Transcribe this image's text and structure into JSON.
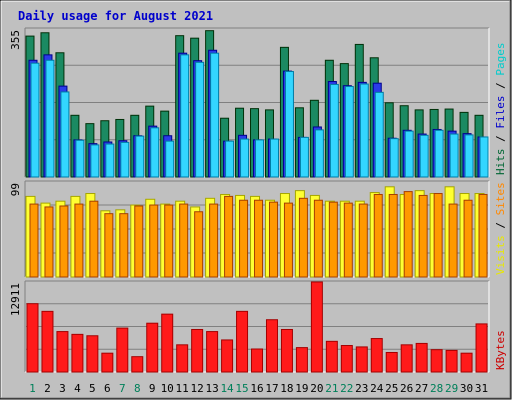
{
  "chart_data": {
    "type": "bar",
    "title": "Daily usage for August 2021",
    "days": [
      "1",
      "2",
      "3",
      "4",
      "5",
      "6",
      "7",
      "8",
      "9",
      "10",
      "11",
      "12",
      "13",
      "14",
      "15",
      "16",
      "17",
      "18",
      "19",
      "20",
      "21",
      "22",
      "23",
      "24",
      "25",
      "26",
      "27",
      "28",
      "29",
      "30",
      "31"
    ],
    "weekend_days": [
      1,
      7,
      8,
      14,
      15,
      21,
      22,
      28,
      29
    ],
    "panels": [
      {
        "id": "top",
        "max_label": "355",
        "ymax": 355,
        "side_labels": [
          {
            "text": "Hits",
            "color": "#006633"
          },
          {
            "text": " / ",
            "color": "#000000"
          },
          {
            "text": "Files",
            "color": "#0000cc"
          },
          {
            "text": " / ",
            "color": "#000000"
          },
          {
            "text": "Pages",
            "color": "#00cccc"
          }
        ],
        "series": [
          {
            "name": "Hits",
            "color": "#1b8a62",
            "values": [
              338,
              346,
              298,
              148,
              128,
              135,
              138,
              148,
              170,
              158,
              339,
              333,
              351,
              141,
              165,
              164,
              161,
              311,
              166,
              184,
              280,
              272,
              318,
              286,
              178,
              171,
              161,
              162,
              163,
              155,
              148
            ]
          },
          {
            "name": "Files",
            "color": "#2a3be8",
            "values": [
              280,
              293,
              218,
              89,
              80,
              84,
              87,
              99,
              122,
              99,
              297,
              279,
              304,
              86,
              100,
              89,
              91,
              254,
              95,
              120,
              229,
              219,
              227,
              225,
              93,
              112,
              103,
              114,
              110,
              104,
              96
            ]
          },
          {
            "name": "Pages",
            "color": "#33d6ff",
            "values": [
              273,
              280,
              204,
              88,
              77,
              79,
              83,
              98,
              118,
              86,
              293,
              275,
              297,
              86,
              91,
              89,
              91,
              253,
              95,
              113,
              222,
              217,
              223,
              203,
              92,
              110,
              100,
              112,
              103,
              101,
              96
            ]
          }
        ]
      },
      {
        "id": "mid",
        "max_label": "99",
        "ymax": 99,
        "side_labels": [
          {
            "text": "Visits",
            "color": "#e8e800"
          },
          {
            "text": " / ",
            "color": "#000000"
          },
          {
            "text": "Sites",
            "color": "#ff8800"
          }
        ],
        "series": [
          {
            "name": "Visits",
            "color": "#ffff33",
            "values": [
              84,
              77,
              79,
              84,
              87,
              69,
              70,
              75,
              81,
              76,
              79,
              73,
              82,
              86,
              85,
              84,
              80,
              87,
              90,
              85,
              79,
              79,
              79,
              88,
              94,
              86,
              90,
              87,
              94,
              87,
              87
            ]
          },
          {
            "name": "Sites",
            "color": "#ff9900",
            "values": [
              76,
              73,
              74,
              76,
              79,
              66,
              66,
              74,
              75,
              75,
              76,
              68,
              76,
              84,
              80,
              80,
              78,
              77,
              82,
              80,
              78,
              77,
              76,
              86,
              86,
              89,
              85,
              87,
              76,
              80,
              86
            ]
          }
        ]
      },
      {
        "id": "bot",
        "max_label": "12911",
        "ymax": 12911,
        "side_labels": [
          {
            "text": "KBytes",
            "color": "#cc0000"
          }
        ],
        "series": [
          {
            "name": "KBytes",
            "color": "#ff1a1a",
            "values": [
              9800,
              8700,
              5800,
              5400,
              5200,
              2700,
              6300,
              2200,
              7000,
              8300,
              3900,
              6100,
              5800,
              4600,
              8700,
              3300,
              7500,
              6100,
              3500,
              12911,
              4400,
              3800,
              3600,
              4800,
              2800,
              3900,
              4100,
              3200,
              3100,
              2700,
              6900
            ]
          }
        ]
      }
    ]
  }
}
